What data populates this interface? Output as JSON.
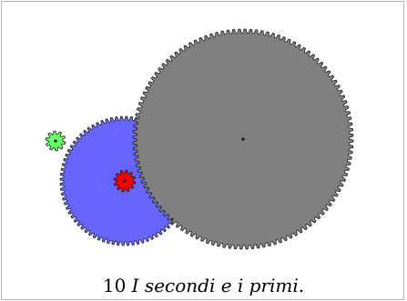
{
  "figure": {
    "caption_number": "10",
    "caption_text": "I secondi e i primi."
  },
  "colors": {
    "gear_large": "#808080",
    "gear_blue": "#6666ff",
    "gear_red": "#ff0000",
    "gear_green": "#66ff66",
    "gear_outline": "#1a1a1a",
    "frame_border": "#b5b5b5"
  },
  "gears": [
    {
      "name": "gear-large-gray",
      "color": "gear_large",
      "teeth": 120
    },
    {
      "name": "gear-medium-blue",
      "color": "gear_blue",
      "teeth": 80
    },
    {
      "name": "gear-small-red",
      "color": "gear_red",
      "teeth": 12
    },
    {
      "name": "gear-tiny-green",
      "color": "gear_green",
      "teeth": 10
    }
  ]
}
